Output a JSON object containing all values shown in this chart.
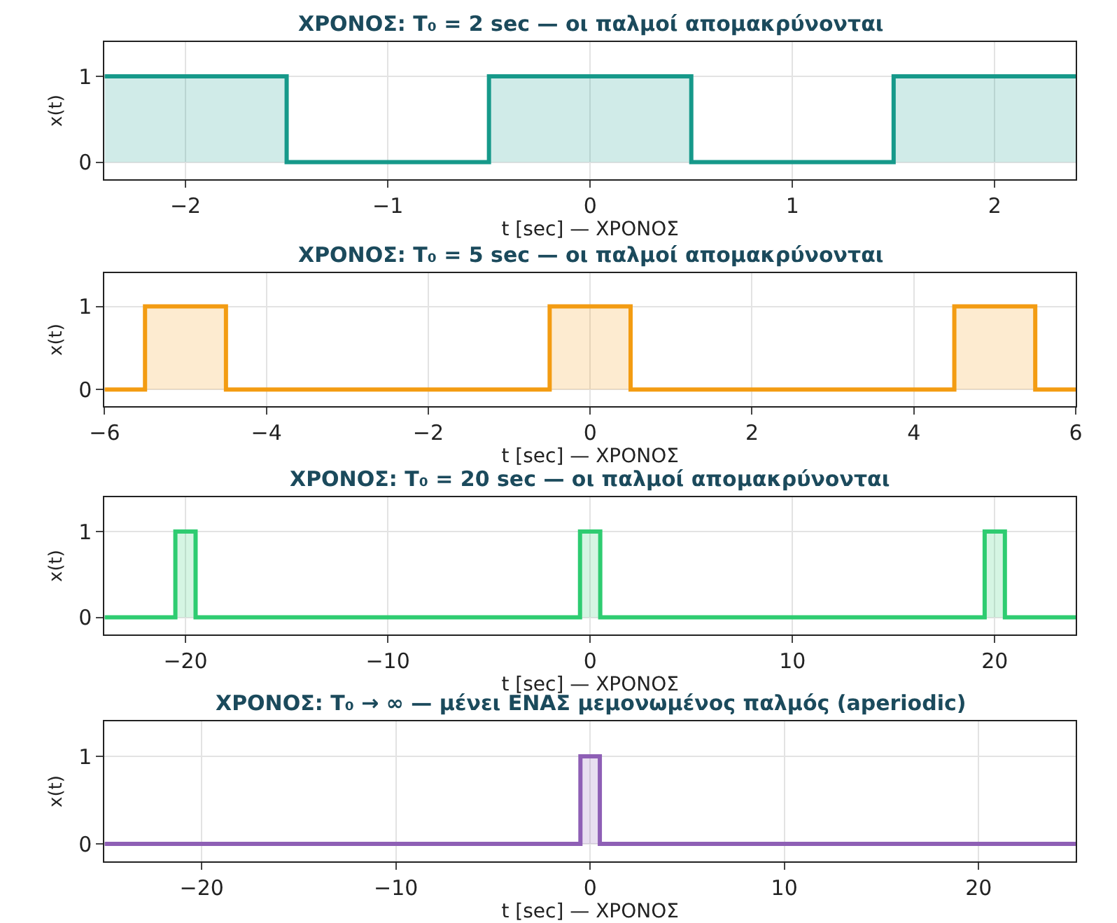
{
  "chart_data": [
    {
      "type": "area",
      "title": "ΧΡΟΝΟΣ: T₀ = 2 sec — οι παλμοί απομακρύνονται",
      "xlabel": "t [sec] — ΧΡΟΝΟΣ",
      "ylabel": "x(t)",
      "xlim": [
        -2.4,
        2.4
      ],
      "xticks": [
        -2,
        -1,
        0,
        1,
        2
      ],
      "ylim": [
        -0.2,
        1.4
      ],
      "yticks": [
        0,
        1
      ],
      "grid": true,
      "series": [
        {
          "color": "#16998a",
          "x": [
            -2.4,
            -1.5,
            -1.5,
            -0.5,
            -0.5,
            0.5,
            0.5,
            1.5,
            1.5,
            2.4
          ],
          "values": [
            1,
            1,
            0,
            0,
            1,
            1,
            0,
            0,
            1,
            1
          ]
        }
      ]
    },
    {
      "type": "area",
      "title": "ΧΡΟΝΟΣ: T₀ = 5 sec — οι παλμοί απομακρύνονται",
      "xlabel": "t [sec] — ΧΡΟΝΟΣ",
      "ylabel": "x(t)",
      "xlim": [
        -6,
        6
      ],
      "xticks": [
        -6,
        -4,
        -2,
        0,
        2,
        4,
        6
      ],
      "ylim": [
        -0.2,
        1.4
      ],
      "yticks": [
        0,
        1
      ],
      "grid": true,
      "series": [
        {
          "color": "#f39c12",
          "x": [
            -6,
            -5.5,
            -5.5,
            -4.5,
            -4.5,
            -0.5,
            -0.5,
            0.5,
            0.5,
            4.5,
            4.5,
            5.5,
            5.5,
            6
          ],
          "values": [
            0,
            0,
            1,
            1,
            0,
            0,
            1,
            1,
            0,
            0,
            1,
            1,
            0,
            0
          ]
        }
      ]
    },
    {
      "type": "area",
      "title": "ΧΡΟΝΟΣ: T₀ = 20 sec — οι παλμοί απομακρύνονται",
      "xlabel": "t [sec] — ΧΡΟΝΟΣ",
      "ylabel": "x(t)",
      "xlim": [
        -24,
        24
      ],
      "xticks": [
        -20,
        -10,
        0,
        10,
        20
      ],
      "ylim": [
        -0.2,
        1.4
      ],
      "yticks": [
        0,
        1
      ],
      "grid": true,
      "series": [
        {
          "color": "#2ecc71",
          "x": [
            -24,
            -20.5,
            -20.5,
            -19.5,
            -19.5,
            -0.5,
            -0.5,
            0.5,
            0.5,
            19.5,
            19.5,
            20.5,
            20.5,
            24
          ],
          "values": [
            0,
            0,
            1,
            1,
            0,
            0,
            1,
            1,
            0,
            0,
            1,
            1,
            0,
            0
          ]
        }
      ]
    },
    {
      "type": "area",
      "title": "ΧΡΟΝΟΣ: T₀ → ∞ — μένει ΕΝΑΣ μεμονωμένος παλμός (aperiodic)",
      "xlabel": "t [sec] — ΧΡΟΝΟΣ",
      "ylabel": "x(t)",
      "xlim": [
        -25,
        25
      ],
      "xticks": [
        -20,
        -10,
        0,
        10,
        20
      ],
      "ylim": [
        -0.2,
        1.4
      ],
      "yticks": [
        0,
        1
      ],
      "grid": true,
      "series": [
        {
          "color": "#8e5fb5",
          "x": [
            -25,
            -0.5,
            -0.5,
            0.5,
            0.5,
            25
          ],
          "values": [
            0,
            0,
            1,
            1,
            0,
            0
          ]
        }
      ]
    }
  ]
}
